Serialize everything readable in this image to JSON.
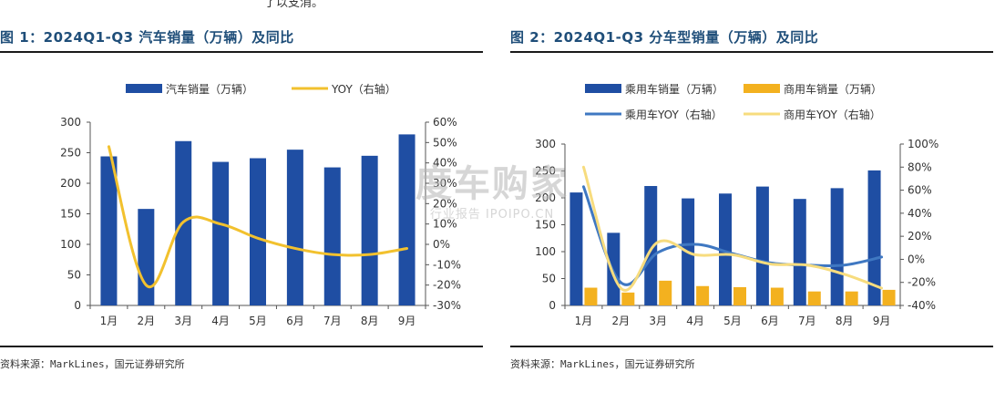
{
  "top_text": "了以支消。",
  "watermark": {
    "main": "度车购家",
    "sub": "行业报告 IPOIPO.CN"
  },
  "colors": {
    "bar_blue": "#1f4ea3",
    "bar_gold": "#f3b11f",
    "line_gold": "#f2c12e",
    "line_blue": "#3f78c2",
    "line_lightgold": "#f7dc7e",
    "title": "#1f4e79"
  },
  "chart_data": [
    {
      "type": "bar",
      "title": "图 1：2024Q1-Q3 汽车销量（万辆）及同比",
      "source": "资料来源：MarkLines，国元证券研究所",
      "categories": [
        "1月",
        "2月",
        "3月",
        "4月",
        "5月",
        "6月",
        "7月",
        "8月",
        "9月"
      ],
      "ylim": [
        0,
        300
      ],
      "yticks": [
        "0",
        "50",
        "100",
        "150",
        "200",
        "250",
        "300"
      ],
      "y2lim": [
        -30,
        60
      ],
      "y2ticks": [
        "-30%",
        "-20%",
        "-10%",
        "0%",
        "10%",
        "20%",
        "30%",
        "40%",
        "50%",
        "60%"
      ],
      "legend_position": "top",
      "series": [
        {
          "name": "汽车销量（万辆）",
          "kind": "bar",
          "axis": "left",
          "values": [
            244,
            158,
            269,
            235,
            241,
            255,
            226,
            245,
            280
          ]
        },
        {
          "name": "YOY（右轴）",
          "kind": "line",
          "axis": "right",
          "values": [
            48,
            -20,
            11,
            10,
            3,
            -2,
            -5,
            -5,
            -2
          ]
        }
      ]
    },
    {
      "type": "bar",
      "title": "图 2：2024Q1-Q3 分车型销量（万辆）及同比",
      "source": "资料来源：MarkLines，国元证券研究所",
      "categories": [
        "1月",
        "2月",
        "3月",
        "4月",
        "5月",
        "6月",
        "7月",
        "8月",
        "9月"
      ],
      "ylim": [
        0,
        300
      ],
      "yticks": [
        "0",
        "50",
        "100",
        "150",
        "200",
        "250",
        "300"
      ],
      "y2lim": [
        -40,
        100
      ],
      "y2ticks": [
        "-40%",
        "-20%",
        "0%",
        "20%",
        "40%",
        "60%",
        "80%",
        "100%"
      ],
      "legend_position": "top",
      "series": [
        {
          "name": "乘用车销量（万辆）",
          "kind": "bar",
          "axis": "left",
          "values": [
            210,
            135,
            222,
            199,
            208,
            221,
            198,
            218,
            251
          ]
        },
        {
          "name": "商用车销量（万辆）",
          "kind": "bar",
          "axis": "left",
          "values": [
            33,
            24,
            46,
            36,
            34,
            33,
            26,
            26,
            29
          ]
        },
        {
          "name": "乘用车YOY（右轴）",
          "kind": "line",
          "axis": "right",
          "values": [
            63,
            -20,
            6,
            13,
            5,
            -3,
            -5,
            -5,
            2
          ]
        },
        {
          "name": "商用车YOY（右轴）",
          "kind": "line",
          "axis": "right",
          "values": [
            80,
            -25,
            15,
            4,
            4,
            -4,
            -5,
            -13,
            -25
          ]
        }
      ]
    }
  ]
}
